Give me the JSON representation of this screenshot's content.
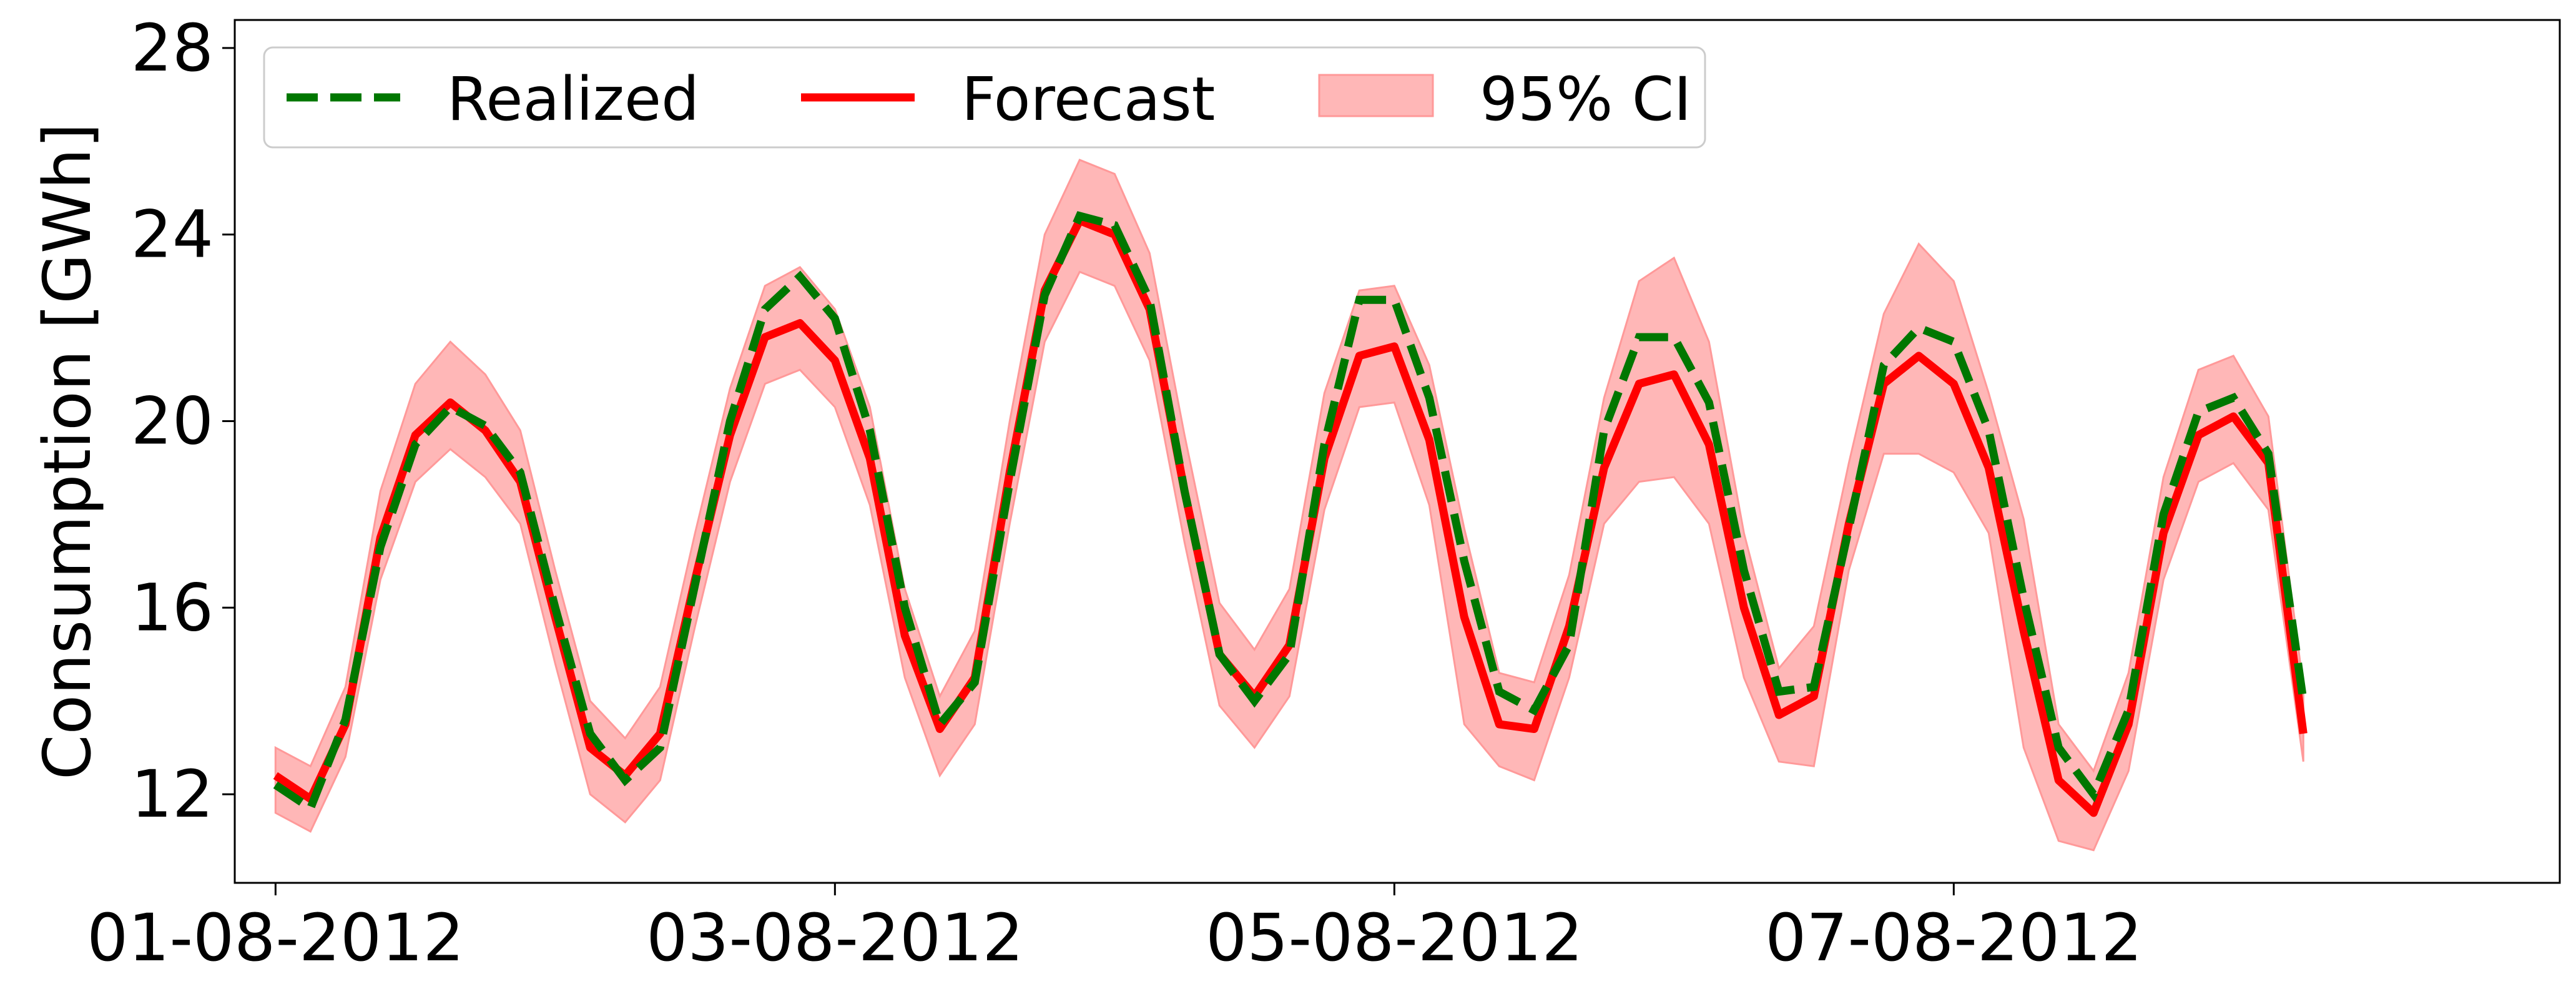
{
  "chart_data": {
    "type": "line",
    "title": "",
    "xlabel": "",
    "ylabel": "Consumption [GWh]",
    "ylim": [
      10.1,
      28.6
    ],
    "yticks": [
      12,
      16,
      20,
      24,
      28
    ],
    "xlim": [
      "2012-07-31T20:30",
      "2012-08-09T04:00"
    ],
    "x_tick_labels": [
      "01-08-2012",
      "03-08-2012",
      "05-08-2012",
      "07-08-2012"
    ],
    "x_tick_dates": [
      "2012-08-01T00:00",
      "2012-08-03T00:00",
      "2012-08-05T00:00",
      "2012-08-07T00:00"
    ],
    "time_start": "2012-08-01T00:00",
    "time_step_hours": 3,
    "legend": {
      "position": "top-left",
      "columns": 3
    },
    "grid": false,
    "colors": {
      "realized": "#007700",
      "forecast": "#ff0000",
      "band": "#ff9999"
    },
    "series": [
      {
        "name": "Realized",
        "style": "dashed",
        "values": [
          12.2,
          11.7,
          13.6,
          17.3,
          19.5,
          20.3,
          19.9,
          18.9,
          16.0,
          13.3,
          12.3,
          13.0,
          16.5,
          20.0,
          22.4,
          23.1,
          22.2,
          19.8,
          16.0,
          13.5,
          14.4,
          18.7,
          22.7,
          24.4,
          24.2,
          22.6,
          18.5,
          15.0,
          14.0,
          15.0,
          19.5,
          22.6,
          22.6,
          20.5,
          17.0,
          14.2,
          13.8,
          15.2,
          19.8,
          21.8,
          21.8,
          20.4,
          16.8,
          14.2,
          14.3,
          17.7,
          21.2,
          22.0,
          21.7,
          19.8,
          16.2,
          13.0,
          12.0,
          13.8,
          18.0,
          20.2,
          20.5,
          19.3,
          14.0
        ]
      },
      {
        "name": "Forecast",
        "style": "solid",
        "values": [
          12.4,
          11.9,
          13.5,
          17.5,
          19.7,
          20.4,
          19.8,
          18.7,
          15.8,
          13.0,
          12.4,
          13.3,
          16.6,
          19.7,
          21.8,
          22.1,
          21.3,
          19.2,
          15.4,
          13.4,
          14.5,
          18.9,
          22.8,
          24.3,
          24.0,
          22.4,
          18.5,
          15.0,
          14.1,
          15.2,
          19.2,
          21.4,
          21.6,
          19.6,
          15.8,
          13.5,
          13.4,
          15.6,
          19.0,
          20.8,
          21.0,
          19.5,
          16.0,
          13.7,
          14.1,
          17.8,
          20.8,
          21.4,
          20.8,
          19.0,
          15.5,
          12.3,
          11.6,
          13.5,
          17.6,
          19.7,
          20.1,
          19.1,
          13.3
        ]
      },
      {
        "name": "95% CI",
        "style": "band",
        "lower": [
          11.6,
          11.2,
          12.8,
          16.6,
          18.7,
          19.4,
          18.8,
          17.8,
          14.8,
          12.0,
          11.4,
          12.3,
          15.6,
          18.7,
          20.8,
          21.1,
          20.3,
          18.2,
          14.5,
          12.4,
          13.5,
          17.8,
          21.7,
          23.2,
          22.9,
          21.3,
          17.4,
          13.9,
          13.0,
          14.1,
          18.1,
          20.3,
          20.4,
          18.2,
          13.5,
          12.6,
          12.3,
          14.5,
          17.8,
          18.7,
          18.8,
          17.8,
          14.5,
          12.7,
          12.6,
          16.8,
          19.3,
          19.3,
          18.9,
          17.6,
          13.0,
          11.0,
          10.8,
          12.5,
          16.6,
          18.7,
          19.1,
          18.1,
          12.7
        ],
        "upper": [
          13.0,
          12.6,
          14.3,
          18.5,
          20.8,
          21.7,
          21.0,
          19.8,
          16.8,
          14.0,
          13.2,
          14.3,
          17.6,
          20.7,
          22.9,
          23.3,
          22.4,
          20.3,
          16.4,
          14.1,
          15.5,
          20.0,
          24.0,
          25.6,
          25.3,
          23.6,
          19.7,
          16.1,
          15.1,
          16.4,
          20.6,
          22.8,
          22.9,
          21.2,
          17.7,
          14.6,
          14.4,
          16.7,
          20.5,
          23.0,
          23.5,
          21.7,
          17.6,
          14.7,
          15.6,
          19.1,
          22.3,
          23.8,
          23.0,
          20.6,
          17.9,
          13.5,
          12.5,
          14.6,
          18.8,
          21.1,
          21.4,
          20.1,
          14.3
        ]
      }
    ]
  }
}
